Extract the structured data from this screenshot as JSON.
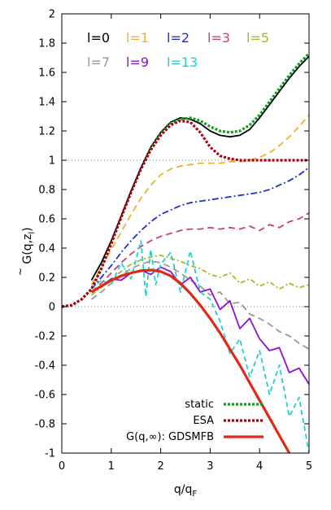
{
  "chart_data": {
    "type": "line",
    "xlabel": "q/q",
    "xlabel_sub": "F",
    "ylabel": "G(q,z",
    "ylabel_sub": "l",
    "ylabel_close": ")",
    "ylabel_accent": "~",
    "xlim": [
      0,
      5
    ],
    "ylim": [
      -1,
      2
    ],
    "xticks": [
      0,
      1,
      2,
      3,
      4,
      5
    ],
    "yticks": [
      -1,
      -0.8,
      -0.6,
      -0.4,
      -0.2,
      0,
      0.2,
      0.4,
      0.6,
      0.8,
      1,
      1.2,
      1.4,
      1.6,
      1.8,
      2
    ],
    "xtick_labels": [
      "0",
      "1",
      "2",
      "3",
      "4",
      "5"
    ],
    "ytick_labels": [
      "-1",
      "-0.8",
      "-0.6",
      "-0.4",
      "-0.2",
      "0",
      "0.2",
      "0.4",
      "0.6",
      "0.8",
      "1",
      "1.2",
      "1.4",
      "1.6",
      "1.8",
      "2"
    ],
    "reference_lines": [
      0,
      1
    ],
    "series": [
      {
        "name": "l=0",
        "legend": "top",
        "color": "#000000",
        "dash": "",
        "width": 1.8,
        "x": [
          0.6,
          0.8,
          1.0,
          1.2,
          1.4,
          1.6,
          1.8,
          2.0,
          2.2,
          2.4,
          2.6,
          2.8,
          3.0,
          3.2,
          3.4,
          3.6,
          3.8,
          4.0,
          4.2,
          4.4,
          4.6,
          4.8,
          5.0
        ],
        "y": [
          0.18,
          0.3,
          0.45,
          0.62,
          0.79,
          0.95,
          1.09,
          1.19,
          1.26,
          1.29,
          1.28,
          1.25,
          1.2,
          1.17,
          1.16,
          1.17,
          1.21,
          1.29,
          1.38,
          1.47,
          1.56,
          1.64,
          1.71
        ]
      },
      {
        "name": "l=1",
        "legend": "top",
        "color": "#f0b030",
        "dash": "8,5",
        "width": 1.8,
        "x": [
          0.6,
          0.8,
          1.0,
          1.2,
          1.4,
          1.6,
          1.8,
          2.0,
          2.2,
          2.4,
          2.6,
          2.8,
          3.0,
          3.2,
          3.4,
          3.6,
          3.8,
          4.0,
          4.2,
          4.4,
          4.6,
          4.8,
          5.0
        ],
        "y": [
          0.15,
          0.27,
          0.39,
          0.51,
          0.63,
          0.74,
          0.83,
          0.9,
          0.94,
          0.96,
          0.97,
          0.98,
          0.98,
          0.98,
          0.99,
          0.99,
          1.0,
          1.02,
          1.05,
          1.1,
          1.16,
          1.23,
          1.31
        ]
      },
      {
        "name": "l=2",
        "legend": "top",
        "color": "#2030d0",
        "dash": "8,3,2,3",
        "width": 1.8,
        "x": [
          0.6,
          0.8,
          1.0,
          1.2,
          1.4,
          1.6,
          1.8,
          2.0,
          2.2,
          2.4,
          2.6,
          2.8,
          3.0,
          3.2,
          3.4,
          3.6,
          3.8,
          4.0,
          4.2,
          4.4,
          4.6,
          4.8,
          5.0
        ],
        "y": [
          0.12,
          0.2,
          0.28,
          0.37,
          0.45,
          0.52,
          0.58,
          0.63,
          0.66,
          0.69,
          0.71,
          0.72,
          0.73,
          0.74,
          0.75,
          0.76,
          0.77,
          0.78,
          0.8,
          0.83,
          0.86,
          0.9,
          0.95
        ]
      },
      {
        "name": "l=3",
        "legend": "top",
        "color": "#cc4070",
        "dash": "8,5",
        "width": 1.8,
        "x": [
          0.6,
          0.8,
          1.0,
          1.2,
          1.4,
          1.6,
          1.8,
          2.0,
          2.2,
          2.4,
          2.6,
          2.8,
          3.0,
          3.2,
          3.4,
          3.6,
          3.8,
          4.0,
          4.2,
          4.4,
          4.6,
          4.8,
          5.0
        ],
        "y": [
          0.1,
          0.16,
          0.23,
          0.3,
          0.36,
          0.41,
          0.45,
          0.48,
          0.5,
          0.52,
          0.53,
          0.53,
          0.54,
          0.53,
          0.54,
          0.53,
          0.55,
          0.52,
          0.56,
          0.54,
          0.58,
          0.6,
          0.64
        ]
      },
      {
        "name": "l=5",
        "legend": "top",
        "color": "#99c020",
        "dash": "6,3,2,3",
        "width": 1.8,
        "x": [
          0.6,
          0.8,
          1.0,
          1.2,
          1.4,
          1.6,
          1.8,
          2.0,
          2.2,
          2.4,
          2.6,
          2.8,
          3.0,
          3.2,
          3.4,
          3.6,
          3.8,
          4.0,
          4.2,
          4.4,
          4.6,
          4.8,
          5.0
        ],
        "y": [
          0.08,
          0.13,
          0.19,
          0.24,
          0.29,
          0.32,
          0.34,
          0.35,
          0.33,
          0.31,
          0.28,
          0.26,
          0.22,
          0.2,
          0.23,
          0.16,
          0.19,
          0.14,
          0.17,
          0.12,
          0.16,
          0.13,
          0.15
        ]
      },
      {
        "name": "l=7",
        "legend": "top",
        "color": "#999999",
        "dash": "8,5",
        "width": 1.8,
        "x": [
          0.6,
          0.8,
          1.0,
          1.2,
          1.4,
          1.6,
          1.8,
          2.0,
          2.2,
          2.4,
          2.6,
          2.8,
          3.0,
          3.2,
          3.4,
          3.6,
          3.8,
          4.0,
          4.2,
          4.4,
          4.6,
          4.8,
          5.0
        ],
        "y": [
          0.05,
          0.1,
          0.16,
          0.21,
          0.26,
          0.29,
          0.31,
          0.3,
          0.27,
          0.23,
          0.18,
          0.14,
          0.08,
          0.1,
          0.02,
          0.03,
          -0.05,
          -0.08,
          -0.12,
          -0.17,
          -0.2,
          -0.25,
          -0.29
        ]
      },
      {
        "name": "l=9",
        "legend": "top",
        "color": "#9010d0",
        "dash": "",
        "width": 1.8,
        "x": [
          0.6,
          0.8,
          1.0,
          1.2,
          1.4,
          1.6,
          1.8,
          2.0,
          2.2,
          2.4,
          2.6,
          2.8,
          3.0,
          3.2,
          3.4,
          3.6,
          3.8,
          4.0,
          4.2,
          4.4,
          4.6,
          4.8,
          5.0
        ],
        "y": [
          0.1,
          0.14,
          0.19,
          0.18,
          0.23,
          0.25,
          0.22,
          0.27,
          0.24,
          0.15,
          0.2,
          0.1,
          0.12,
          -0.02,
          0.04,
          -0.15,
          -0.08,
          -0.22,
          -0.3,
          -0.28,
          -0.45,
          -0.42,
          -0.53
        ]
      },
      {
        "name": "l=13",
        "legend": "top",
        "color": "#20d0d0",
        "dash": "6,4",
        "width": 1.8,
        "x": [
          0.6,
          0.8,
          1.0,
          1.2,
          1.4,
          1.6,
          1.7,
          1.8,
          1.9,
          2.0,
          2.2,
          2.4,
          2.6,
          2.8,
          3.0,
          3.2,
          3.4,
          3.6,
          3.8,
          4.0,
          4.2,
          4.4,
          4.6,
          4.8,
          5.0
        ],
        "y": [
          0.12,
          0.18,
          0.15,
          0.3,
          0.19,
          0.45,
          0.07,
          0.39,
          0.15,
          0.29,
          0.37,
          0.1,
          0.38,
          0.1,
          0.05,
          -0.1,
          -0.32,
          -0.22,
          -0.48,
          -0.3,
          -0.6,
          -0.4,
          -0.75,
          -0.62,
          -1.0
        ]
      },
      {
        "name": "static",
        "legend": "bottom",
        "color": "#10a020",
        "dash": "3,2",
        "width": 3.2,
        "x": [
          0.0,
          0.2,
          0.4,
          0.6,
          0.8,
          1.0,
          1.2,
          1.4,
          1.6,
          1.8,
          2.0,
          2.2,
          2.4,
          2.6,
          2.8,
          3.0,
          3.2,
          3.4,
          3.6,
          3.8,
          4.0,
          4.2,
          4.4,
          4.6,
          4.8,
          5.0
        ],
        "y": [
          0.0,
          0.01,
          0.05,
          0.12,
          0.26,
          0.43,
          0.61,
          0.78,
          0.94,
          1.08,
          1.18,
          1.25,
          1.28,
          1.29,
          1.27,
          1.23,
          1.2,
          1.19,
          1.2,
          1.24,
          1.31,
          1.4,
          1.49,
          1.58,
          1.66,
          1.73
        ]
      },
      {
        "name": "ESA",
        "legend": "bottom",
        "color": "#b00010",
        "dash": "3,2",
        "width": 3.2,
        "x": [
          0.0,
          0.2,
          0.4,
          0.6,
          0.8,
          1.0,
          1.2,
          1.4,
          1.6,
          1.8,
          2.0,
          2.2,
          2.4,
          2.6,
          2.8,
          3.0,
          3.2,
          3.4,
          3.6,
          3.8,
          4.0,
          4.2,
          4.4,
          4.6,
          4.8,
          5.0
        ],
        "y": [
          0.0,
          0.01,
          0.05,
          0.12,
          0.26,
          0.43,
          0.61,
          0.78,
          0.94,
          1.07,
          1.17,
          1.24,
          1.27,
          1.26,
          1.19,
          1.09,
          1.03,
          1.01,
          1.0,
          1.0,
          1.0,
          1.0,
          1.0,
          1.0,
          1.0,
          1.0
        ]
      },
      {
        "name": "G(q,∞): GDSMFB",
        "legend": "bottom",
        "color": "#e02818",
        "dash": "",
        "width": 3.2,
        "x": [
          0.6,
          0.8,
          1.0,
          1.2,
          1.4,
          1.6,
          1.8,
          2.0,
          2.2,
          2.4,
          2.6,
          2.8,
          3.0,
          3.2,
          3.4,
          3.6,
          3.8,
          4.0,
          4.2,
          4.4,
          4.6
        ],
        "y": [
          0.1,
          0.14,
          0.18,
          0.21,
          0.23,
          0.245,
          0.25,
          0.24,
          0.21,
          0.16,
          0.09,
          0.01,
          -0.08,
          -0.18,
          -0.29,
          -0.4,
          -0.52,
          -0.64,
          -0.76,
          -0.88,
          -1.0
        ]
      }
    ]
  }
}
